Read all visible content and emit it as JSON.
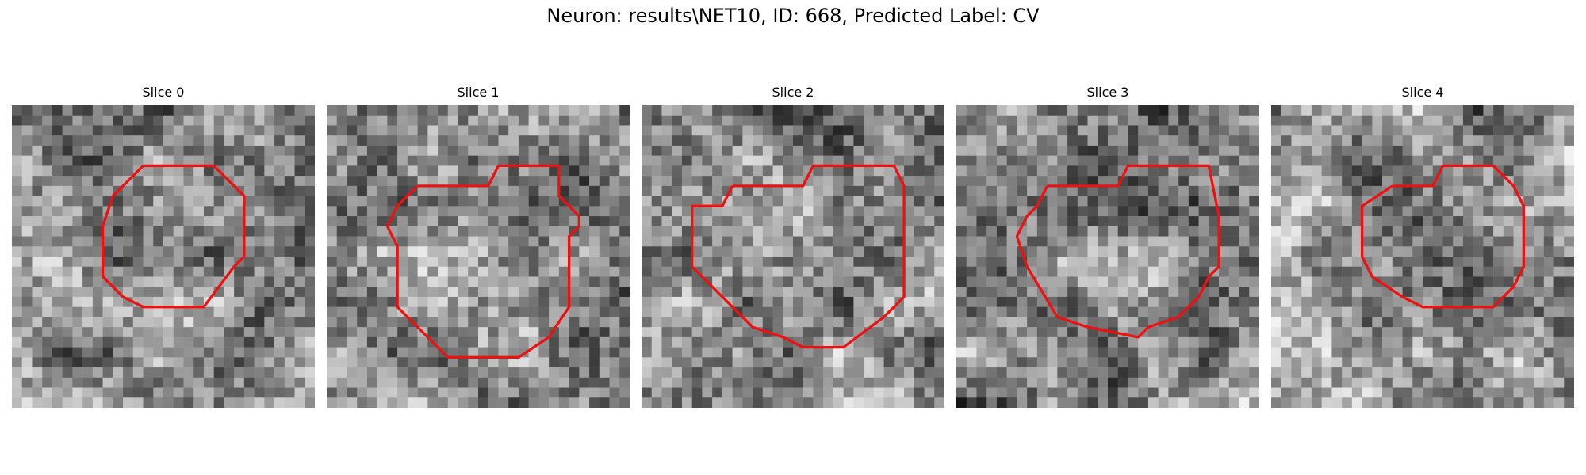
{
  "title": "Neuron: results\\NET10, ID: 668, Predicted Label: CV",
  "colors": {
    "background": "#ffffff",
    "contour": "#ee1111",
    "colormap": "gray"
  },
  "image": {
    "grid_size": 30
  },
  "slices": [
    {
      "label": "Slice 0",
      "seed": 11,
      "contour": [
        [
          13,
          6
        ],
        [
          20,
          6
        ],
        [
          23,
          9
        ],
        [
          23,
          15
        ],
        [
          22,
          16
        ],
        [
          19,
          20
        ],
        [
          13,
          20
        ],
        [
          11,
          19
        ],
        [
          10,
          18
        ],
        [
          9,
          17
        ],
        [
          9,
          12
        ],
        [
          10,
          9
        ],
        [
          13,
          6
        ]
      ]
    },
    {
      "label": "Slice 1",
      "seed": 23,
      "contour": [
        [
          9,
          8
        ],
        [
          16,
          8
        ],
        [
          17,
          6
        ],
        [
          23,
          6
        ],
        [
          23,
          9
        ],
        [
          25,
          11
        ],
        [
          25,
          12
        ],
        [
          24,
          13
        ],
        [
          24,
          20
        ],
        [
          22,
          23
        ],
        [
          19,
          25
        ],
        [
          12,
          25
        ],
        [
          8,
          21
        ],
        [
          7,
          20
        ],
        [
          7,
          14
        ],
        [
          6,
          12
        ],
        [
          7,
          10
        ],
        [
          9,
          8
        ]
      ]
    },
    {
      "label": "Slice 2",
      "seed": 37,
      "contour": [
        [
          9,
          8
        ],
        [
          16,
          8
        ],
        [
          17,
          6
        ],
        [
          25,
          6
        ],
        [
          26,
          8
        ],
        [
          26,
          19
        ],
        [
          24,
          21
        ],
        [
          20,
          24
        ],
        [
          16,
          24
        ],
        [
          14,
          23
        ],
        [
          11,
          22
        ],
        [
          10,
          21
        ],
        [
          5,
          16
        ],
        [
          5,
          10
        ],
        [
          8,
          10
        ],
        [
          9,
          8
        ]
      ]
    },
    {
      "label": "Slice 3",
      "seed": 49,
      "contour": [
        [
          9,
          8
        ],
        [
          16,
          8
        ],
        [
          17,
          6
        ],
        [
          25,
          6
        ],
        [
          26,
          11
        ],
        [
          26,
          16
        ],
        [
          25,
          17
        ],
        [
          24,
          19
        ],
        [
          22,
          21
        ],
        [
          19,
          22
        ],
        [
          18,
          23
        ],
        [
          13,
          22
        ],
        [
          10,
          21
        ],
        [
          7,
          16
        ],
        [
          6,
          13
        ],
        [
          7,
          11
        ],
        [
          8,
          10
        ],
        [
          9,
          8
        ]
      ]
    },
    {
      "label": "Slice 4",
      "seed": 61,
      "contour": [
        [
          12,
          8
        ],
        [
          16,
          8
        ],
        [
          17,
          6
        ],
        [
          22,
          6
        ],
        [
          24,
          8
        ],
        [
          25,
          10
        ],
        [
          25,
          16
        ],
        [
          24,
          18
        ],
        [
          22,
          20
        ],
        [
          15,
          20
        ],
        [
          13,
          19
        ],
        [
          10,
          17
        ],
        [
          9,
          15
        ],
        [
          9,
          10
        ],
        [
          12,
          8
        ]
      ]
    }
  ]
}
